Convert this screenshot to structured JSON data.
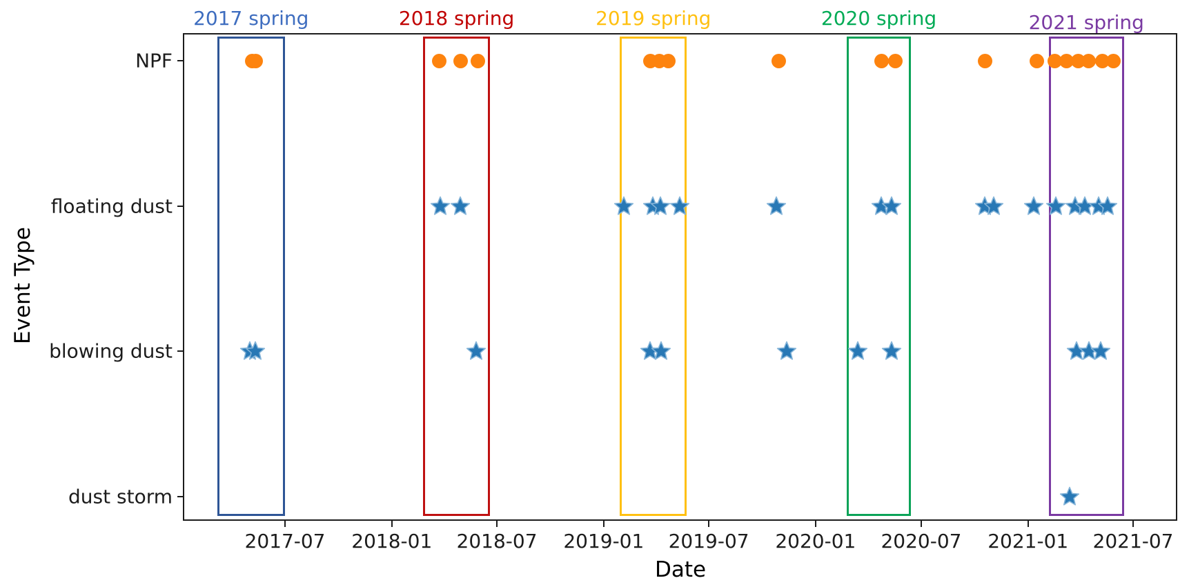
{
  "chart_data": {
    "type": "scatter",
    "xlabel": "Date",
    "ylabel": "Event Type",
    "x_tick_labels": [
      "2017-07",
      "2018-01",
      "2018-07",
      "2019-01",
      "2019-07",
      "2020-01",
      "2020-07",
      "2021-01",
      "2021-07"
    ],
    "y_categories": [
      "NPF",
      "floating dust",
      "blowing dust",
      "dust storm"
    ],
    "axis_color": "#1c1c1c",
    "legend": "none",
    "grid": false,
    "series": [
      {
        "name": "NPF",
        "marker": "circle",
        "color": "#fd830e",
        "dates": [
          "2017-05-06",
          "2017-05-12",
          "2018-03-24",
          "2018-04-30",
          "2018-05-29",
          "2019-03-23",
          "2019-04-07",
          "2019-04-22",
          "2019-10-29",
          "2020-04-24",
          "2020-05-18",
          "2020-10-19",
          "2021-01-16",
          "2021-02-16",
          "2021-03-08",
          "2021-03-28",
          "2021-04-15",
          "2021-05-09",
          "2021-05-28"
        ]
      },
      {
        "name": "floating dust",
        "marker": "star",
        "color": "#2878b5",
        "edge_color": "#85b4d8",
        "dates": [
          "2018-03-26",
          "2018-04-29",
          "2019-02-05",
          "2019-03-27",
          "2019-04-09",
          "2019-05-12",
          "2019-10-25",
          "2020-04-23",
          "2020-05-11",
          "2020-10-19",
          "2020-11-03",
          "2021-01-11",
          "2021-02-18",
          "2021-03-23",
          "2021-04-09",
          "2021-05-03",
          "2021-05-18"
        ]
      },
      {
        "name": "blowing dust",
        "marker": "star",
        "color": "#2878b5",
        "edge_color": "#85b4d8",
        "dates": [
          "2017-05-01",
          "2017-05-11",
          "2018-05-26",
          "2019-03-22",
          "2019-04-10",
          "2019-11-12",
          "2020-03-14",
          "2020-05-11",
          "2021-03-26",
          "2021-04-16",
          "2021-05-06"
        ]
      },
      {
        "name": "dust storm",
        "marker": "star",
        "color": "#2878b5",
        "edge_color": "#85b4d8",
        "dates": [
          "2021-03-14"
        ]
      }
    ],
    "highlight_boxes": [
      {
        "label": "2017 spring",
        "label_color": "#3e6dbf",
        "box_color": "#2e5596",
        "start": "2017-03-06",
        "end": "2017-07-01"
      },
      {
        "label": "2018 spring",
        "label_color": "#c00000",
        "box_color": "#bf1111",
        "start": "2018-02-24",
        "end": "2018-06-19"
      },
      {
        "label": "2019 spring",
        "label_color": "#ffc011",
        "box_color": "#ffc011",
        "start": "2019-01-29",
        "end": "2019-05-24"
      },
      {
        "label": "2020 spring",
        "label_color": "#00ab55",
        "box_color": "#0ba358",
        "start": "2020-02-24",
        "end": "2020-06-13"
      },
      {
        "label": "2021 spring",
        "label_color": "#7a3aa2",
        "box_color": "#7a3aa2",
        "start": "2021-02-06",
        "end": "2021-06-15",
        "label_dy": 6
      }
    ]
  }
}
